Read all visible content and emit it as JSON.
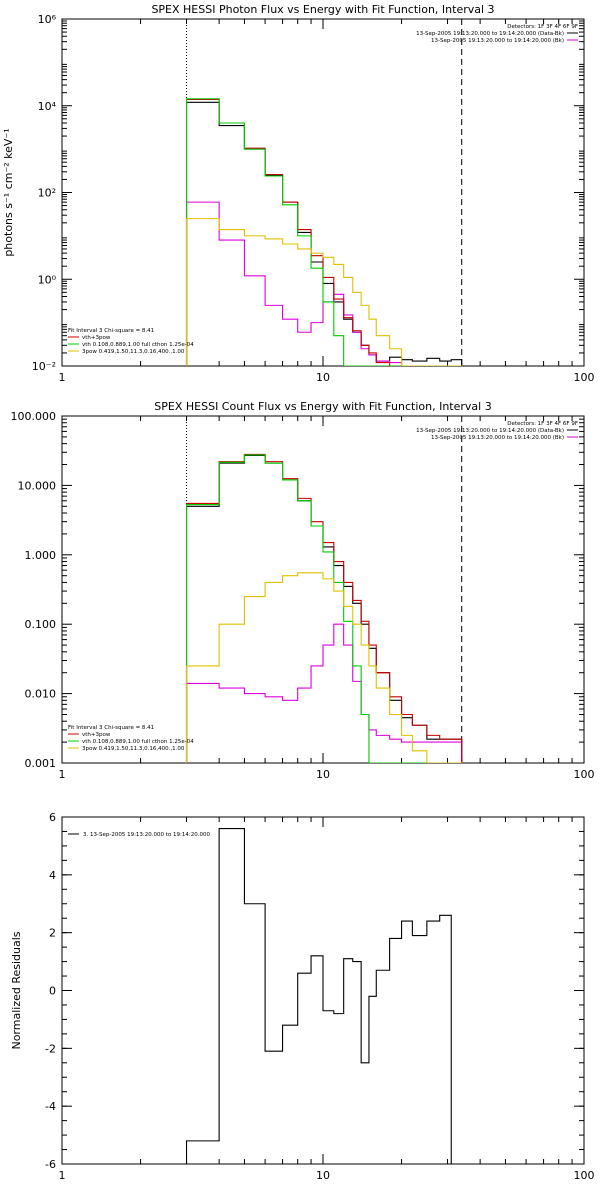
{
  "colors": {
    "black": "#000000",
    "red": "#cc0000",
    "green": "#00cc00",
    "magenta": "#dd00dd",
    "yellow": "#e0c000"
  },
  "chart_data": [
    {
      "type": "line",
      "title": "SPEX HESSI Photon Flux vs Energy with Fit Function, Interval 3",
      "xlabel": "",
      "ylabel": "photons s⁻¹ cm⁻² keV⁻¹",
      "xscale": "log",
      "yscale": "log",
      "xlim": [
        1,
        100
      ],
      "ylim": [
        0.01,
        1000000
      ],
      "xticks": [
        1,
        10,
        100
      ],
      "xtick_labels": [
        "1",
        "10",
        "100"
      ],
      "yticks": [
        0.01,
        1,
        100,
        10000,
        1000000
      ],
      "ytick_labels": [
        "10⁻²",
        "10⁰",
        "10²",
        "10⁴",
        "10⁶"
      ],
      "vlines": [
        {
          "x": 3,
          "style": "dotted"
        },
        {
          "x": 34,
          "style": "dashed"
        }
      ],
      "header_text": [
        "Detectors: 1F 3F 4F 6F 9F",
        "13-Sep-2005 19:13:20.000 to 19:14:20.000 (Data-Bk)",
        "13-Sep-2005 19:13:20.000 to 19:14:20.000 (Bk)"
      ],
      "fit_text": [
        "Fit Interval 3   Chi-square = 8.41",
        "vth+3pow",
        "vth 0.108,0.889,1.00  full cthon 1.25e-04",
        "3pow 0.419,1.50,11.3,0.16,400.,1.00"
      ],
      "bin_edges": [
        3,
        4,
        5,
        6,
        7,
        8,
        9,
        10,
        11,
        12,
        13,
        14,
        15,
        16,
        18,
        20,
        22,
        25,
        28,
        31,
        34
      ],
      "series": [
        {
          "name": "13-Sep-2005 19:13:20.000 to 19:14:20.000 (Data-Bk)",
          "color": "black",
          "values": [
            12000,
            3500,
            1000,
            250,
            60,
            12,
            2.5,
            0.8,
            0.3,
            0.12,
            0.06,
            0.03,
            0.018,
            0.013,
            0.016,
            0.014,
            0.013,
            0.015,
            0.013,
            0.014
          ]
        },
        {
          "name": "13-Sep-2005 19:13:20.000 to 19:14:20.000 (Bk)",
          "color": "magenta",
          "values": [
            60,
            8,
            1.2,
            0.25,
            0.12,
            0.06,
            0.1,
            0.3,
            0.45,
            0.15,
            0.06,
            0.025,
            0.018,
            0.013,
            0.012,
            0.01,
            0.01,
            0.01,
            0.01,
            0.01
          ]
        },
        {
          "name": "vth+3pow",
          "color": "red",
          "values": [
            14000,
            4000,
            1050,
            260,
            60,
            14,
            3.5,
            1.1,
            0.35,
            0.13,
            0.065,
            0.03,
            0.02,
            0.012,
            0.01,
            0.01,
            0.01,
            0.01,
            0.01,
            0.01
          ]
        },
        {
          "name": "vth 0.108,0.889,1.00  full cthon 1.25e-04",
          "color": "green",
          "values": [
            14500,
            4000,
            1000,
            240,
            52,
            10,
            1.8,
            0.3,
            0.05,
            0.01,
            0.01,
            0.01,
            0.01,
            0.01,
            0.01,
            0.01,
            0.01,
            0.01,
            0.01,
            0.01
          ]
        },
        {
          "name": "3pow 0.419,1.50,11.3,0.16,400.,1.00",
          "color": "yellow",
          "values": [
            25,
            14,
            10,
            8.5,
            6.5,
            5,
            4,
            3.2,
            2.2,
            1.1,
            0.5,
            0.25,
            0.12,
            0.05,
            0.025,
            0.01,
            0.01,
            0.01,
            0.01,
            0.01
          ]
        }
      ]
    },
    {
      "type": "line",
      "title": "SPEX HESSI Count Flux vs Energy with Fit Function, Interval 3",
      "xlabel": "",
      "ylabel": "",
      "xscale": "log",
      "yscale": "log",
      "xlim": [
        1,
        100
      ],
      "ylim": [
        0.001,
        100
      ],
      "xticks": [
        1,
        10,
        100
      ],
      "xtick_labels": [
        "1",
        "10",
        "100"
      ],
      "yticks": [
        0.001,
        0.01,
        0.1,
        1,
        10,
        100
      ],
      "ytick_labels": [
        "0.001",
        "0.010",
        "0.100",
        "1.000",
        "10.000",
        "100.000"
      ],
      "vlines": [
        {
          "x": 3,
          "style": "dotted"
        },
        {
          "x": 34,
          "style": "dashed"
        }
      ],
      "header_text": [
        "Detectors: 1F 3F 4F 6F 9F",
        "13-Sep-2005 19:13:20.000 to 19:14:20.000 (Data-Bk)",
        "13-Sep-2005 19:13:20.000 to 19:14:20.000 (Bk)"
      ],
      "fit_text": [
        "Fit Interval 3   Chi-square = 8.41",
        "vth+3pow",
        "vth 0.108,0.889,1.00  full cthon 1.25e-04",
        "3pow 0.419,1.50,11.3,0.16,400.,1.00"
      ],
      "bin_edges": [
        3,
        4,
        5,
        6,
        7,
        8,
        9,
        10,
        11,
        12,
        13,
        14,
        15,
        16,
        18,
        20,
        22,
        25,
        28,
        31,
        34
      ],
      "series": [
        {
          "name": "13-Sep-2005 19:13:20.000 to 19:14:20.000 (Data-Bk)",
          "color": "black",
          "values": [
            5,
            21,
            27,
            21,
            12,
            6,
            2.6,
            1.3,
            0.7,
            0.35,
            0.2,
            0.1,
            0.045,
            0.02,
            0.008,
            0.0045,
            0.0035,
            0.0022,
            0.0022,
            0.0022
          ]
        },
        {
          "name": "13-Sep-2005 19:13:20.000 to 19:14:20.000 (Bk)",
          "color": "magenta",
          "values": [
            0.014,
            0.012,
            0.01,
            0.009,
            0.008,
            0.012,
            0.025,
            0.05,
            0.1,
            0.05,
            0.015,
            0.005,
            0.003,
            0.0025,
            0.0022,
            0.002,
            0.002,
            0.002,
            0.002,
            0.002
          ]
        },
        {
          "name": "vth+3pow",
          "color": "red",
          "values": [
            5.5,
            22,
            28,
            22,
            12.5,
            6.5,
            3,
            1.5,
            0.8,
            0.4,
            0.22,
            0.11,
            0.05,
            0.02,
            0.009,
            0.005,
            0.0035,
            0.0025,
            0.0022,
            0.0022
          ]
        },
        {
          "name": "vth 0.108,0.889,1.00  full cthon 1.25e-04",
          "color": "green",
          "values": [
            5.3,
            21.5,
            27.5,
            21,
            12,
            6,
            2.6,
            1.1,
            0.4,
            0.11,
            0.025,
            0.005,
            0.001,
            0.001,
            0.001,
            0.001,
            0.001,
            0.001,
            0.001,
            0.001
          ]
        },
        {
          "name": "3pow 0.419,1.50,11.3,0.16,400.,1.00",
          "color": "yellow",
          "values": [
            0.025,
            0.1,
            0.25,
            0.4,
            0.5,
            0.55,
            0.55,
            0.45,
            0.3,
            0.18,
            0.1,
            0.05,
            0.025,
            0.012,
            0.005,
            0.0025,
            0.0015,
            0.001,
            0.001,
            0.001
          ]
        }
      ]
    },
    {
      "type": "line",
      "title": "",
      "xlabel": "",
      "ylabel": "Normalized Residuals",
      "xscale": "log",
      "yscale": "linear",
      "xlim": [
        1,
        100
      ],
      "ylim": [
        -6,
        6
      ],
      "xticks": [
        1,
        10,
        100
      ],
      "xtick_labels": [
        "1",
        "10",
        "100"
      ],
      "yticks": [
        -6,
        -4,
        -2,
        0,
        2,
        4,
        6
      ],
      "ytick_labels": [
        "-6",
        "-4",
        "-2",
        "0",
        "2",
        "4",
        "6"
      ],
      "vlines": [],
      "legend_position": "top-left",
      "legend_entries": [
        "3. 13-Sep-2005 19:13:20.000 to 19:14:20.000"
      ],
      "bin_edges": [
        3,
        4,
        5,
        6,
        7,
        8,
        9,
        10,
        11,
        12,
        13,
        14,
        15,
        16,
        18,
        20,
        22,
        25,
        28,
        31,
        34
      ],
      "series": [
        {
          "name": "3. 13-Sep-2005 19:13:20.000 to 19:14:20.000",
          "color": "black",
          "values": [
            -5.2,
            5.6,
            3.0,
            -2.1,
            -1.2,
            0.6,
            1.2,
            -0.7,
            -0.8,
            1.1,
            1.0,
            -2.5,
            -0.2,
            0.7,
            1.8,
            2.4,
            1.9,
            2.4,
            2.6,
            -6
          ]
        }
      ]
    }
  ]
}
